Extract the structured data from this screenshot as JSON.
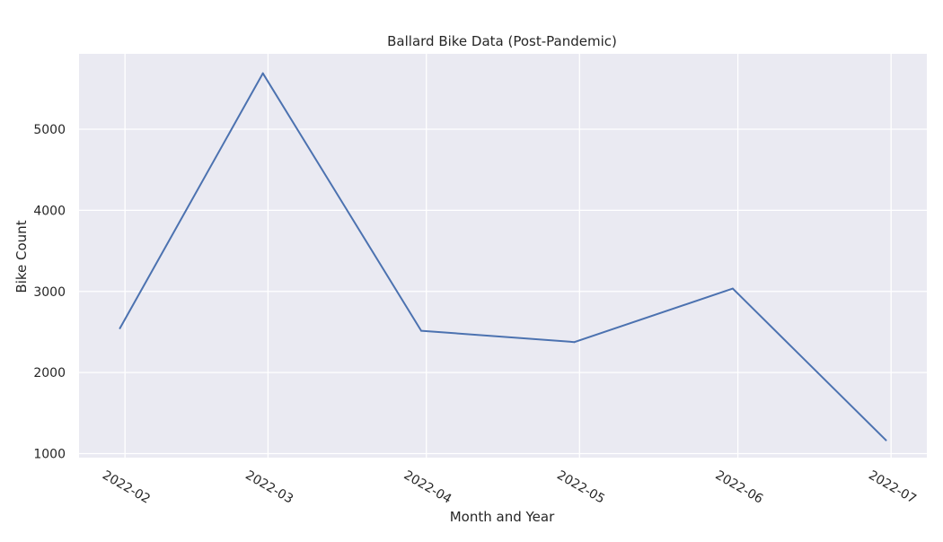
{
  "chart_data": {
    "type": "line",
    "title": "Ballard Bike Data (Post-Pandemic)",
    "xlabel": "Month and Year",
    "ylabel": "Bike Count",
    "x_ticks": [
      "2022-02",
      "2022-03",
      "2022-04",
      "2022-05",
      "2022-06",
      "2022-07"
    ],
    "y_ticks": [
      1000,
      2000,
      3000,
      4000,
      5000
    ],
    "xlim": [
      "2022-01-23",
      "2022-07-08"
    ],
    "ylim": [
      950,
      5930
    ],
    "grid": true,
    "series": [
      {
        "x": [
          "2022-01-31",
          "2022-02-28",
          "2022-03-31",
          "2022-04-30",
          "2022-05-31",
          "2022-06-30"
        ],
        "values": [
          2545,
          5690,
          2515,
          2375,
          3035,
          1165
        ]
      }
    ],
    "colors": {
      "line": "#4c72b0",
      "background": "#eaeaf2",
      "grid": "#ffffff"
    }
  }
}
